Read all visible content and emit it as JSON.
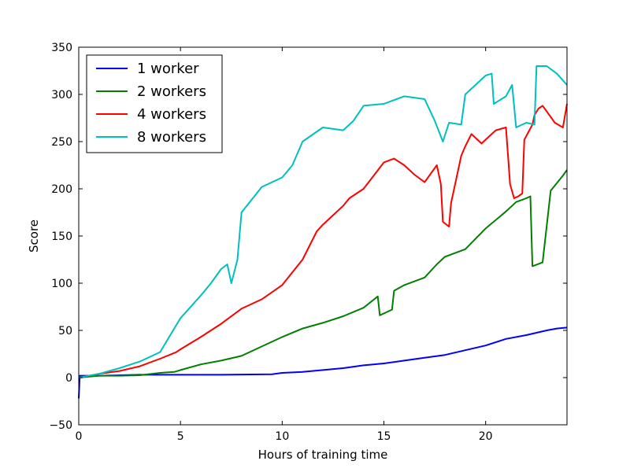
{
  "chart_data": {
    "type": "line",
    "xlabel": "Hours of training time",
    "ylabel": "Score",
    "xlim": [
      0,
      24
    ],
    "ylim": [
      -50,
      350
    ],
    "xticks": [
      0,
      5,
      10,
      15,
      20
    ],
    "yticks": [
      -50,
      0,
      50,
      100,
      150,
      200,
      250,
      300,
      350
    ],
    "xtick_labels": [
      "0",
      "5",
      "10",
      "15",
      "20"
    ],
    "ytick_labels": [
      "−50",
      "0",
      "50",
      "100",
      "150",
      "200",
      "250",
      "300",
      "350"
    ],
    "grid": false,
    "legend_position": "top-left",
    "series": [
      {
        "name": "1 worker",
        "color": "#0000ff",
        "points": [
          [
            0,
            -22
          ],
          [
            0.05,
            2
          ],
          [
            1,
            2
          ],
          [
            2,
            2.5
          ],
          [
            3,
            3
          ],
          [
            5,
            3
          ],
          [
            7,
            3
          ],
          [
            9.5,
            3.5
          ],
          [
            10,
            5
          ],
          [
            11,
            6
          ],
          [
            12,
            8
          ],
          [
            13,
            10
          ],
          [
            14,
            13
          ],
          [
            15,
            15
          ],
          [
            16,
            18
          ],
          [
            17,
            21
          ],
          [
            18,
            24
          ],
          [
            19,
            29
          ],
          [
            20,
            34
          ],
          [
            21,
            41
          ],
          [
            22,
            45
          ],
          [
            23,
            50
          ],
          [
            23.5,
            52
          ],
          [
            24,
            53
          ]
        ]
      },
      {
        "name": "2 workers",
        "color": "#008000",
        "points": [
          [
            0,
            0
          ],
          [
            1,
            2
          ],
          [
            2,
            2
          ],
          [
            3,
            2.5
          ],
          [
            4,
            5
          ],
          [
            4.7,
            6
          ],
          [
            5,
            8
          ],
          [
            6,
            14
          ],
          [
            7,
            18
          ],
          [
            8,
            23
          ],
          [
            9,
            33
          ],
          [
            10,
            43
          ],
          [
            11,
            52
          ],
          [
            12,
            58
          ],
          [
            13,
            65
          ],
          [
            14,
            74
          ],
          [
            14.7,
            86
          ],
          [
            14.8,
            66
          ],
          [
            15.4,
            72
          ],
          [
            15.5,
            92
          ],
          [
            16,
            98
          ],
          [
            17,
            106
          ],
          [
            17.6,
            120
          ],
          [
            18,
            128
          ],
          [
            19,
            136
          ],
          [
            20,
            158
          ],
          [
            21,
            176
          ],
          [
            21.5,
            186
          ],
          [
            22,
            190
          ],
          [
            22.2,
            192
          ],
          [
            22.3,
            118
          ],
          [
            22.8,
            122
          ],
          [
            23.2,
            198
          ],
          [
            23.8,
            214
          ],
          [
            24,
            220
          ]
        ]
      },
      {
        "name": "4 workers",
        "color": "#ff0000",
        "points": [
          [
            0,
            0
          ],
          [
            1,
            4
          ],
          [
            2,
            7
          ],
          [
            3,
            12
          ],
          [
            4,
            20
          ],
          [
            4.8,
            27
          ],
          [
            5,
            30
          ],
          [
            6,
            43
          ],
          [
            7,
            57
          ],
          [
            8,
            73
          ],
          [
            9,
            83
          ],
          [
            10,
            98
          ],
          [
            11,
            125
          ],
          [
            11.7,
            155
          ],
          [
            12,
            162
          ],
          [
            13,
            182
          ],
          [
            13.3,
            190
          ],
          [
            14,
            200
          ],
          [
            15,
            228
          ],
          [
            15.5,
            232
          ],
          [
            16,
            225
          ],
          [
            16.5,
            215
          ],
          [
            17,
            207
          ],
          [
            17.6,
            225
          ],
          [
            17.8,
            205
          ],
          [
            17.9,
            165
          ],
          [
            18.2,
            160
          ],
          [
            18.3,
            185
          ],
          [
            18.8,
            235
          ],
          [
            19,
            245
          ],
          [
            19.3,
            258
          ],
          [
            19.8,
            248
          ],
          [
            20.3,
            258
          ],
          [
            20.5,
            262
          ],
          [
            21,
            265
          ],
          [
            21.2,
            205
          ],
          [
            21.4,
            190
          ],
          [
            21.6,
            192
          ],
          [
            21.8,
            195
          ],
          [
            21.9,
            252
          ],
          [
            22.3,
            268
          ],
          [
            22.4,
            278
          ],
          [
            22.6,
            285
          ],
          [
            22.8,
            288
          ],
          [
            23,
            282
          ],
          [
            23.4,
            270
          ],
          [
            23.8,
            265
          ],
          [
            24,
            290
          ]
        ]
      },
      {
        "name": "8 workers",
        "color": "#00bfbf",
        "points": [
          [
            0,
            0
          ],
          [
            1,
            4
          ],
          [
            2,
            10
          ],
          [
            3,
            17
          ],
          [
            4,
            27
          ],
          [
            5,
            63
          ],
          [
            6,
            87
          ],
          [
            6.5,
            100
          ],
          [
            7,
            115
          ],
          [
            7.3,
            120
          ],
          [
            7.5,
            100
          ],
          [
            7.8,
            125
          ],
          [
            8,
            175
          ],
          [
            9,
            202
          ],
          [
            10,
            212
          ],
          [
            10.5,
            225
          ],
          [
            11,
            250
          ],
          [
            12,
            265
          ],
          [
            13,
            262
          ],
          [
            13.5,
            272
          ],
          [
            14,
            288
          ],
          [
            15,
            290
          ],
          [
            16,
            298
          ],
          [
            17,
            295
          ],
          [
            17.5,
            272
          ],
          [
            17.9,
            250
          ],
          [
            18.2,
            270
          ],
          [
            18.8,
            268
          ],
          [
            19,
            300
          ],
          [
            19.5,
            310
          ],
          [
            20,
            320
          ],
          [
            20.3,
            322
          ],
          [
            20.4,
            290
          ],
          [
            21,
            298
          ],
          [
            21.3,
            310
          ],
          [
            21.5,
            265
          ],
          [
            22,
            270
          ],
          [
            22.4,
            268
          ],
          [
            22.5,
            330
          ],
          [
            23,
            330
          ],
          [
            23.5,
            322
          ],
          [
            24,
            310
          ]
        ]
      }
    ]
  }
}
